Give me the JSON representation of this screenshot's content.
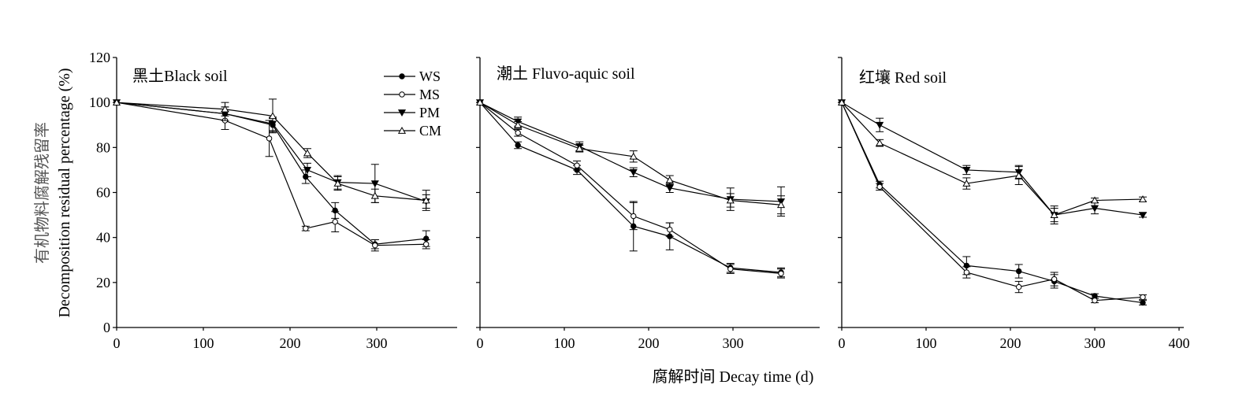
{
  "figure": {
    "ylabel_cn": "有机物料腐解残留率",
    "ylabel_en": "Decomposition residual percentage (%)",
    "xlabel": "腐解时间 Decay time (d)"
  },
  "chart_data": [
    {
      "type": "line",
      "title": "黑土Black soil",
      "xlabel": "腐解时间 Decay time (d)",
      "ylabel": "Decomposition residual percentage (%)",
      "xlim": [
        0,
        400
      ],
      "ylim": [
        0,
        120
      ],
      "xticks": [
        "0",
        "100",
        "200",
        "300"
      ],
      "yticks": [
        "0",
        "20",
        "40",
        "60",
        "80",
        "100",
        "120"
      ],
      "legend_position": "top-right",
      "series": [
        {
          "name": "WS",
          "marker": "filled-circle",
          "x": [
            0,
            125,
            180,
            218,
            252,
            298,
            357
          ],
          "y": [
            100,
            95,
            90,
            67,
            52,
            37,
            39.5
          ],
          "err": [
            0,
            3,
            3,
            3,
            3.5,
            2,
            3.5
          ]
        },
        {
          "name": "MS",
          "marker": "open-circle",
          "x": [
            0,
            125,
            176,
            218,
            252,
            298,
            357
          ],
          "y": [
            100,
            92,
            84,
            44,
            47,
            36.5,
            37
          ],
          "err": [
            0,
            4,
            8,
            1,
            4.5,
            2.5,
            2
          ]
        },
        {
          "name": "PM",
          "marker": "filled-down-triangle",
          "x": [
            0,
            125,
            180,
            220,
            255,
            298,
            357
          ],
          "y": [
            100,
            95,
            90.5,
            70,
            64.5,
            64,
            56
          ],
          "err": [
            0,
            3,
            3,
            3,
            3,
            8.5,
            3
          ]
        },
        {
          "name": "CM",
          "marker": "open-up-triangle",
          "x": [
            0,
            125,
            180,
            220,
            255,
            298,
            357
          ],
          "y": [
            100,
            97,
            94,
            77.5,
            64,
            58.5,
            56.5
          ],
          "err": [
            0,
            3,
            7.5,
            2,
            3,
            3,
            4.5
          ]
        }
      ]
    },
    {
      "type": "line",
      "title": "潮土 Fluvo-aquic soil",
      "xlabel": "腐解时间 Decay time (d)",
      "xlim": [
        0,
        400
      ],
      "ylim": [
        0,
        120
      ],
      "xticks": [
        "0",
        "100",
        "200",
        "300"
      ],
      "series": [
        {
          "name": "WS",
          "marker": "filled-circle",
          "x": [
            0,
            45,
            115,
            182,
            225,
            297,
            357
          ],
          "y": [
            100,
            81,
            70,
            45,
            40.5,
            26.5,
            24.5
          ],
          "err": [
            0,
            1.5,
            2,
            11,
            6,
            2,
            2
          ]
        },
        {
          "name": "MS",
          "marker": "open-circle",
          "x": [
            0,
            45,
            115,
            182,
            225,
            297,
            357
          ],
          "y": [
            100,
            86.5,
            72,
            49.5,
            43.5,
            26,
            24
          ],
          "err": [
            0,
            1.5,
            2,
            6,
            3,
            2,
            2
          ]
        },
        {
          "name": "PM",
          "marker": "filled-down-triangle",
          "x": [
            0,
            45,
            118,
            182,
            225,
            297,
            357
          ],
          "y": [
            100,
            91.5,
            80.5,
            69,
            62,
            57,
            56
          ],
          "err": [
            0,
            2,
            2,
            2,
            2,
            5,
            6.5
          ]
        },
        {
          "name": "CM",
          "marker": "open-up-triangle",
          "x": [
            0,
            45,
            118,
            182,
            225,
            297,
            357
          ],
          "y": [
            100,
            90,
            79.5,
            76,
            65.5,
            56.5,
            54.5
          ],
          "err": [
            0,
            1.5,
            1.5,
            2.5,
            2,
            3,
            4
          ]
        }
      ]
    },
    {
      "type": "line",
      "title": "红壤 Red soil",
      "xlabel": "腐解时间 Decay time (d)",
      "xlim": [
        0,
        400
      ],
      "ylim": [
        0,
        120
      ],
      "xticks": [
        "0",
        "100",
        "200",
        "300",
        "400"
      ],
      "series": [
        {
          "name": "WS",
          "marker": "filled-circle",
          "x": [
            0,
            45,
            148,
            210,
            252,
            300,
            357
          ],
          "y": [
            100,
            63.5,
            27.5,
            25,
            20.5,
            14,
            11
          ],
          "err": [
            0,
            1.5,
            4,
            3,
            3,
            1,
            1
          ]
        },
        {
          "name": "MS",
          "marker": "open-circle",
          "x": [
            0,
            45,
            148,
            210,
            252,
            300,
            357
          ],
          "y": [
            100,
            62.5,
            24.5,
            18,
            21.5,
            12,
            13.5
          ],
          "err": [
            0,
            1.5,
            2.5,
            2.5,
            3,
            1,
            1
          ]
        },
        {
          "name": "PM",
          "marker": "filled-down-triangle",
          "x": [
            0,
            45,
            148,
            210,
            252,
            300,
            357
          ],
          "y": [
            100,
            90,
            70,
            69,
            50,
            53,
            50
          ],
          "err": [
            0,
            3,
            2,
            3,
            3,
            2.5,
            1
          ]
        },
        {
          "name": "CM",
          "marker": "open-up-triangle",
          "x": [
            0,
            45,
            148,
            210,
            252,
            300,
            357
          ],
          "y": [
            100,
            82,
            64,
            67.5,
            50,
            56.5,
            57
          ],
          "err": [
            0,
            1.5,
            2.5,
            4,
            4,
            1,
            1
          ]
        }
      ]
    }
  ]
}
